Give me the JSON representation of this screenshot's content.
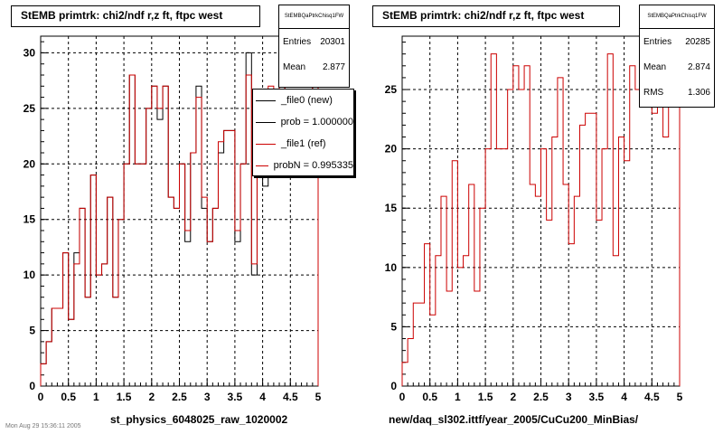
{
  "footer": "Mon Aug 29 15:36:11 2005",
  "chart_data": [
    {
      "type": "histogram",
      "title": "StEMB primtrk: chi2/ndf r,z ft, ftpc west",
      "xlabel": "st_physics_6048025_raw_1020002",
      "ylabel": "",
      "xlim": [
        0,
        5
      ],
      "ylim": [
        0,
        31.5
      ],
      "xticks": [
        "0",
        "0.5",
        "1",
        "1.5",
        "2",
        "2.5",
        "3",
        "3.5",
        "4",
        "4.5",
        "5"
      ],
      "yticks": [
        "0",
        "5",
        "10",
        "15",
        "20",
        "25",
        "30"
      ],
      "grid": true,
      "bin_width": 0.1,
      "stats": {
        "name": "StEMBQaPtrkChisq1FW",
        "rows": [
          {
            "label": "Entries",
            "value": "20301"
          },
          {
            "label": "Mean",
            "value": "2.877"
          }
        ]
      },
      "legend": {
        "entries": [
          {
            "label": "_file0 (new)",
            "color": "#000000"
          },
          {
            "label": "prob = 1.000000",
            "color": "#000000"
          },
          {
            "label": "_file1 (ref)",
            "color": "#cc0000"
          },
          {
            "label": "probN = 0.995335",
            "color": "#cc0000"
          }
        ]
      },
      "series": [
        {
          "name": "_file0 (new)",
          "color": "#000000",
          "values": [
            2,
            4,
            7,
            7,
            12,
            6,
            12,
            16,
            8,
            19,
            10,
            11,
            17,
            8,
            15,
            20,
            28,
            20,
            20,
            25,
            27,
            24,
            27,
            17,
            16,
            20,
            13,
            21,
            27,
            16,
            13,
            16,
            21,
            23,
            23,
            13,
            20,
            30,
            10,
            22,
            18,
            26,
            24,
            27,
            25,
            23,
            24,
            21,
            25,
            28
          ]
        },
        {
          "name": "_file1 (ref)",
          "color": "#cc0000",
          "values": [
            2,
            4,
            7,
            7,
            12,
            6,
            11,
            16,
            8,
            19,
            10,
            11,
            17,
            8,
            15,
            20,
            28,
            20,
            20,
            25,
            27,
            25,
            27,
            17,
            16,
            20,
            14,
            21,
            26,
            17,
            13,
            16,
            22,
            23,
            23,
            14,
            20,
            28,
            11,
            21,
            19,
            27,
            25,
            27,
            26,
            23,
            25,
            21,
            26,
            28
          ]
        }
      ]
    },
    {
      "type": "histogram",
      "title": "StEMB primtrk: chi2/ndf r,z ft, ftpc west",
      "xlabel": "new/daq_sl302.ittf/year_2005/CuCu200_MinBias/",
      "ylabel": "",
      "xlim": [
        0,
        5
      ],
      "ylim": [
        0,
        29.5
      ],
      "xticks": [
        "0",
        "0.5",
        "1",
        "1.5",
        "2",
        "2.5",
        "3",
        "3.5",
        "4",
        "4.5",
        "5"
      ],
      "yticks": [
        "0",
        "5",
        "10",
        "15",
        "20",
        "25"
      ],
      "grid": true,
      "bin_width": 0.1,
      "stats": {
        "name": "StEMBQaPtrkChisq1FW",
        "rows": [
          {
            "label": "Entries",
            "value": "20285"
          },
          {
            "label": "Mean",
            "value": "2.874"
          },
          {
            "label": "RMS",
            "value": "1.306"
          }
        ]
      },
      "series": [
        {
          "name": "",
          "color": "#cc0000",
          "values": [
            2,
            4,
            7,
            7,
            12,
            6,
            11,
            16,
            8,
            19,
            10,
            11,
            17,
            8,
            15,
            20,
            28,
            20,
            20,
            25,
            27,
            25,
            27,
            17,
            16,
            20,
            14,
            21,
            26,
            17,
            12,
            16,
            22,
            23,
            23,
            14,
            20,
            28,
            11,
            21,
            19,
            27,
            25,
            27,
            26,
            23,
            25,
            21,
            26,
            28
          ]
        }
      ]
    }
  ]
}
